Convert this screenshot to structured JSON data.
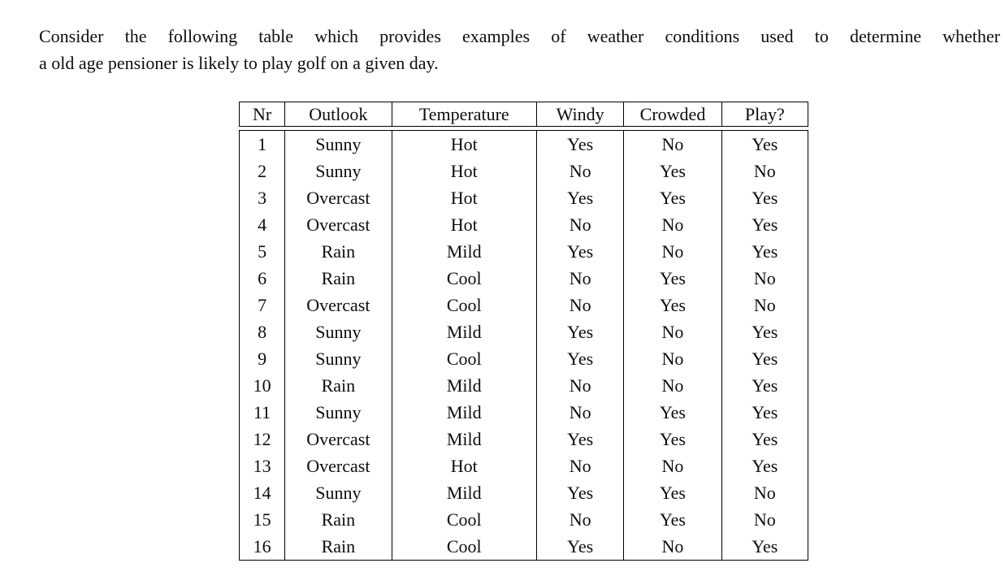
{
  "intro": {
    "lines": [
      "Consider the following table which provides examples of weather conditions used to determine whether",
      "a old age pensioner is likely to play golf on a given day."
    ]
  },
  "table": {
    "columns": [
      "Nr",
      "Outlook",
      "Temperature",
      "Windy",
      "Crowded",
      "Play?"
    ],
    "rows": [
      [
        "1",
        "Sunny",
        "Hot",
        "Yes",
        "No",
        "Yes"
      ],
      [
        "2",
        "Sunny",
        "Hot",
        "No",
        "Yes",
        "No"
      ],
      [
        "3",
        "Overcast",
        "Hot",
        "Yes",
        "Yes",
        "Yes"
      ],
      [
        "4",
        "Overcast",
        "Hot",
        "No",
        "No",
        "Yes"
      ],
      [
        "5",
        "Rain",
        "Mild",
        "Yes",
        "No",
        "Yes"
      ],
      [
        "6",
        "Rain",
        "Cool",
        "No",
        "Yes",
        "No"
      ],
      [
        "7",
        "Overcast",
        "Cool",
        "No",
        "Yes",
        "No"
      ],
      [
        "8",
        "Sunny",
        "Mild",
        "Yes",
        "No",
        "Yes"
      ],
      [
        "9",
        "Sunny",
        "Cool",
        "Yes",
        "No",
        "Yes"
      ],
      [
        "10",
        "Rain",
        "Mild",
        "No",
        "No",
        "Yes"
      ],
      [
        "11",
        "Sunny",
        "Mild",
        "No",
        "Yes",
        "Yes"
      ],
      [
        "12",
        "Overcast",
        "Mild",
        "Yes",
        "Yes",
        "Yes"
      ],
      [
        "13",
        "Overcast",
        "Hot",
        "No",
        "No",
        "Yes"
      ],
      [
        "14",
        "Sunny",
        "Mild",
        "Yes",
        "Yes",
        "No"
      ],
      [
        "15",
        "Rain",
        "Cool",
        "No",
        "Yes",
        "No"
      ],
      [
        "16",
        "Rain",
        "Cool",
        "Yes",
        "No",
        "Yes"
      ]
    ],
    "colors": {
      "border": "#000000",
      "text": "#0d0d0d",
      "background": "#ffffff"
    }
  }
}
